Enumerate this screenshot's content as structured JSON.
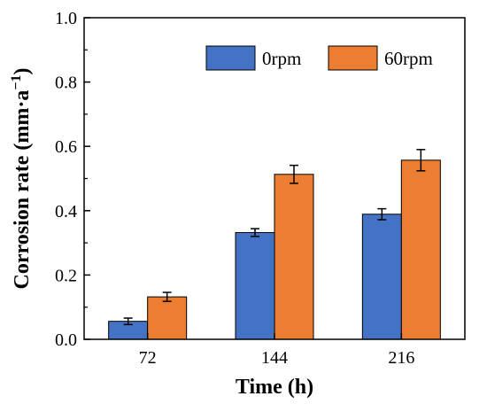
{
  "chart_data": {
    "type": "bar",
    "title": "",
    "xlabel": "Time (h)",
    "ylabel_main": "Corrosion rate (mm·a",
    "ylabel_sup": "−1",
    "ylabel_close": ")",
    "categories": [
      "72",
      "144",
      "216"
    ],
    "ylim": [
      0,
      1.0
    ],
    "yticks": [
      "0.0",
      "0.2",
      "0.4",
      "0.6",
      "0.8",
      "1.0"
    ],
    "legend_position": "top-right",
    "series": [
      {
        "name": "0rpm",
        "color": "#4472C4",
        "values": [
          0.056,
          0.332,
          0.389
        ],
        "errors": [
          0.01,
          0.012,
          0.017
        ]
      },
      {
        "name": "60rpm",
        "color": "#ED7D31",
        "values": [
          0.132,
          0.513,
          0.557
        ],
        "errors": [
          0.014,
          0.028,
          0.033
        ]
      }
    ]
  }
}
